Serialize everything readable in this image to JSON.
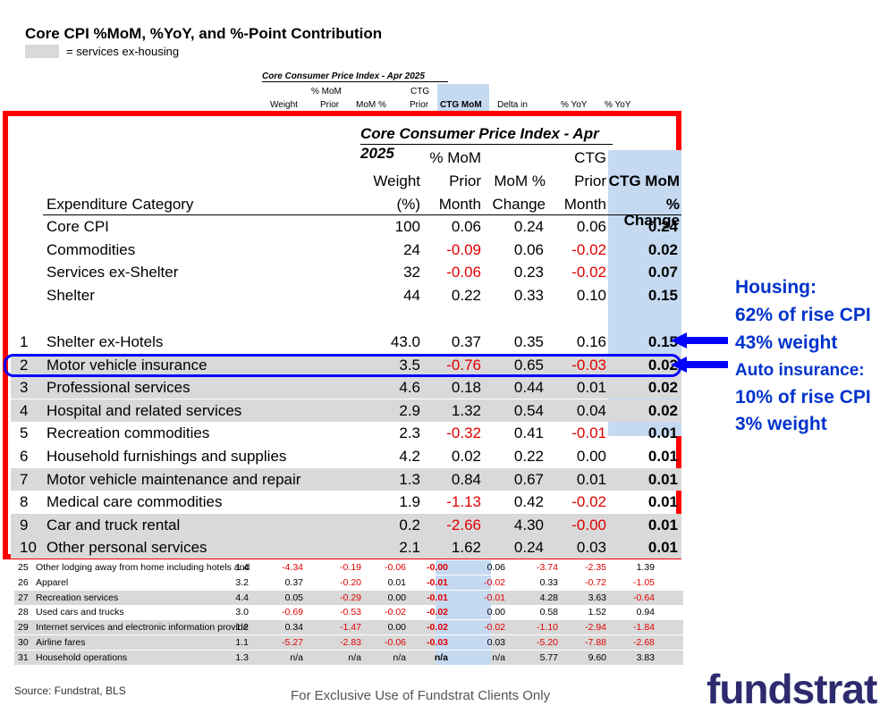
{
  "title": "Core CPI %MoM, %YoY, and %-Point Contribution",
  "legend": {
    "label": "= services ex-housing",
    "swatch_color": "#d9d9d9"
  },
  "colors": {
    "accent_red": "#ff0000",
    "highlight_blue": "#0000ff",
    "ctg_column": "#c5d9f1",
    "negative": "#e00000",
    "annotation": "#0033cc",
    "shade": "#d9d9d9"
  },
  "background_table": {
    "title": "Core Consumer Price Index - Apr 2025",
    "headers": {
      "h1": "% MoM",
      "h2": "CTG",
      "h3": "Weight",
      "h4": "Prior",
      "h5": "MoM %",
      "h6": "Prior",
      "h7": "CTG MoM",
      "h8": "Delta in",
      "h9": "% YoY",
      "h10": "% YoY"
    },
    "rows": [
      {
        "rank": "25",
        "category": "Other lodging away from home including hotels and",
        "values": [
          "1.4",
          "-4.34",
          "-0.19",
          "-0.06",
          "-0.00",
          "0.06",
          "-3.74",
          "-2.35",
          "1.39"
        ],
        "shaded": false
      },
      {
        "rank": "26",
        "category": "Apparel",
        "values": [
          "3.2",
          "0.37",
          "-0.20",
          "0.01",
          "-0.01",
          "-0.02",
          "0.33",
          "-0.72",
          "-1.05"
        ],
        "shaded": false
      },
      {
        "rank": "27",
        "category": "Recreation services",
        "values": [
          "4.4",
          "0.05",
          "-0.29",
          "0.00",
          "-0.01",
          "-0.01",
          "4.28",
          "3.63",
          "-0.64"
        ],
        "shaded": true
      },
      {
        "rank": "28",
        "category": "Used cars and trucks",
        "values": [
          "3.0",
          "-0.69",
          "-0.53",
          "-0.02",
          "-0.02",
          "0.00",
          "0.58",
          "1.52",
          "0.94"
        ],
        "shaded": false
      },
      {
        "rank": "29",
        "category": "Internet services and electronic information provide",
        "values": [
          "1.2",
          "0.34",
          "-1.47",
          "0.00",
          "-0.02",
          "-0.02",
          "-1.10",
          "-2.94",
          "-1.84"
        ],
        "shaded": true
      },
      {
        "rank": "30",
        "category": "Airline fares",
        "values": [
          "1.1",
          "-5.27",
          "-2.83",
          "-0.06",
          "-0.03",
          "0.03",
          "-5.20",
          "-7.88",
          "-2.68"
        ],
        "shaded": true
      },
      {
        "rank": "31",
        "category": "Household operations",
        "values": [
          "1.3",
          "n/a",
          "n/a",
          "n/a",
          "n/a",
          "n/a",
          "5.77",
          "9.60",
          "3.83"
        ],
        "shaded": true
      }
    ]
  },
  "chart_data": {
    "type": "table",
    "title": "Core Consumer Price Index - Apr 2025",
    "columns": [
      "Expenditure Category",
      "Weight (%)",
      "% MoM Prior Month",
      "MoM % Change",
      "CTG Prior Month",
      "CTG MoM % Change"
    ],
    "header": {
      "category": "Expenditure Category",
      "weight": [
        "Weight",
        "(%)"
      ],
      "prior": [
        "% MoM",
        "Prior",
        "Month"
      ],
      "mom": [
        "MoM %",
        "Change"
      ],
      "ctg_prior": [
        "CTG",
        "Prior",
        "Month"
      ],
      "ctg_mom": [
        "CTG MoM",
        "% Change"
      ]
    },
    "summary_rows": [
      {
        "category": "Core CPI",
        "weight": "100",
        "prior": "0.06",
        "mom": "0.24",
        "ctg_prior": "0.06",
        "ctg_mom": "0.24"
      },
      {
        "category": "Commodities",
        "weight": "24",
        "prior": "-0.09",
        "mom": "0.06",
        "ctg_prior": "-0.02",
        "ctg_mom": "0.02"
      },
      {
        "category": "Services ex-Shelter",
        "weight": "32",
        "prior": "-0.06",
        "mom": "0.23",
        "ctg_prior": "-0.02",
        "ctg_mom": "0.07"
      },
      {
        "category": "Shelter",
        "weight": "44",
        "prior": "0.22",
        "mom": "0.33",
        "ctg_prior": "0.10",
        "ctg_mom": "0.15"
      }
    ],
    "rows": [
      {
        "rank": "1",
        "category": "Shelter ex-Hotels",
        "weight": "43.0",
        "prior": "0.37",
        "mom": "0.35",
        "ctg_prior": "0.16",
        "ctg_mom": "0.15",
        "shaded": false
      },
      {
        "rank": "2",
        "category": "Motor vehicle insurance",
        "weight": "3.5",
        "prior": "-0.76",
        "mom": "0.65",
        "ctg_prior": "-0.03",
        "ctg_mom": "0.02",
        "shaded": true
      },
      {
        "rank": "3",
        "category": "Professional services",
        "weight": "4.6",
        "prior": "0.18",
        "mom": "0.44",
        "ctg_prior": "0.01",
        "ctg_mom": "0.02",
        "shaded": true
      },
      {
        "rank": "4",
        "category": "Hospital and related services",
        "weight": "2.9",
        "prior": "1.32",
        "mom": "0.54",
        "ctg_prior": "0.04",
        "ctg_mom": "0.02",
        "shaded": true
      },
      {
        "rank": "5",
        "category": "Recreation commodities",
        "weight": "2.3",
        "prior": "-0.32",
        "mom": "0.41",
        "ctg_prior": "-0.01",
        "ctg_mom": "0.01",
        "shaded": false
      },
      {
        "rank": "6",
        "category": "Household furnishings and supplies",
        "weight": "4.2",
        "prior": "0.02",
        "mom": "0.22",
        "ctg_prior": "0.00",
        "ctg_mom": "0.01",
        "shaded": false
      },
      {
        "rank": "7",
        "category": "Motor vehicle maintenance and repair",
        "weight": "1.3",
        "prior": "0.84",
        "mom": "0.67",
        "ctg_prior": "0.01",
        "ctg_mom": "0.01",
        "shaded": true
      },
      {
        "rank": "8",
        "category": "Medical care commodities",
        "weight": "1.9",
        "prior": "-1.13",
        "mom": "0.42",
        "ctg_prior": "-0.02",
        "ctg_mom": "0.01",
        "shaded": false
      },
      {
        "rank": "9",
        "category": "Car and truck rental",
        "weight": "0.2",
        "prior": "-2.66",
        "mom": "4.30",
        "ctg_prior": "-0.00",
        "ctg_mom": "0.01",
        "shaded": true
      },
      {
        "rank": "10",
        "category": "Other personal services",
        "weight": "2.1",
        "prior": "1.62",
        "mom": "0.24",
        "ctg_prior": "0.03",
        "ctg_mom": "0.01",
        "shaded": true
      }
    ]
  },
  "annotations": {
    "housing": {
      "line1": "Housing:",
      "line2": "62% of rise CPI",
      "line3": "43% weight"
    },
    "auto": {
      "line1": "Auto insurance:",
      "line2": "10% of rise CPI",
      "line3": "3% weight"
    }
  },
  "footer": {
    "source": "Source: Fundstrat, BLS",
    "exclusive": "For Exclusive Use of Fundstrat Clients Only",
    "logo": "fundstrat"
  }
}
